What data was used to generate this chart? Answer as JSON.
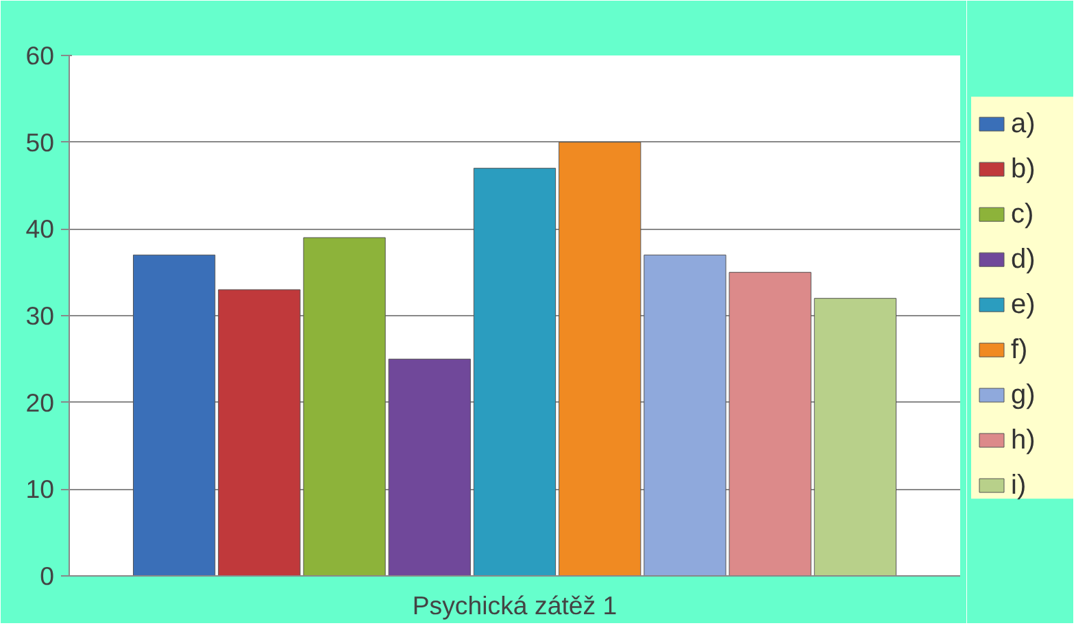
{
  "chart_data": {
    "type": "bar",
    "categories": [
      "Psychická zátěž 1"
    ],
    "series": [
      {
        "name": "a)",
        "color": "#3a6fb8",
        "values": [
          37
        ]
      },
      {
        "name": "b)",
        "color": "#c0393b",
        "values": [
          33
        ]
      },
      {
        "name": "c)",
        "color": "#8db33a",
        "values": [
          39
        ]
      },
      {
        "name": "d)",
        "color": "#70489a",
        "values": [
          25
        ]
      },
      {
        "name": "e)",
        "color": "#2b9dbf",
        "values": [
          47
        ]
      },
      {
        "name": "f)",
        "color": "#f08a22",
        "values": [
          50
        ]
      },
      {
        "name": "g)",
        "color": "#8fa9dc",
        "values": [
          37
        ]
      },
      {
        "name": "h)",
        "color": "#dc8a8a",
        "values": [
          35
        ]
      },
      {
        "name": "i)",
        "color": "#b8d08a",
        "values": [
          32
        ]
      }
    ],
    "ylim": [
      0,
      60
    ],
    "yticks": [
      0,
      10,
      20,
      30,
      40,
      50,
      60
    ],
    "grid": "y",
    "legend": "right"
  }
}
